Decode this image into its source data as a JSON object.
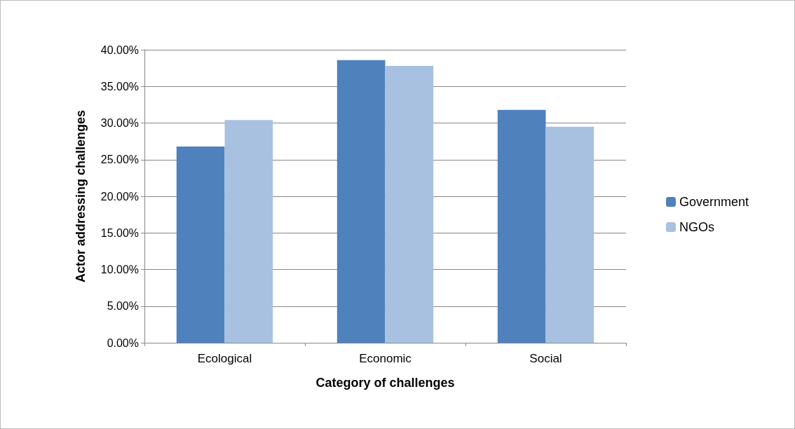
{
  "chart_data": {
    "type": "bar",
    "xlabel": "Category of challenges",
    "ylabel": "Actor addressing challenges",
    "categories": [
      "Ecological",
      "Economic",
      "Social"
    ],
    "series": [
      {
        "name": "Government",
        "color": "#4f81bd",
        "values": [
          26.8,
          38.6,
          31.8
        ]
      },
      {
        "name": "NGOs",
        "color": "#a9c1e0",
        "values": [
          30.4,
          37.8,
          29.5
        ]
      }
    ],
    "ylim": [
      0,
      40
    ],
    "yticks": [
      {
        "value": 0,
        "label": "0.00%"
      },
      {
        "value": 5,
        "label": "5.00%"
      },
      {
        "value": 10,
        "label": "10.00%"
      },
      {
        "value": 15,
        "label": "15.00%"
      },
      {
        "value": 20,
        "label": "20.00%"
      },
      {
        "value": 25,
        "label": "25.00%"
      },
      {
        "value": 30,
        "label": "30.00%"
      },
      {
        "value": 35,
        "label": "35.00%"
      },
      {
        "value": 40,
        "label": "40.00%"
      }
    ],
    "grid": "y",
    "legend": "right"
  }
}
